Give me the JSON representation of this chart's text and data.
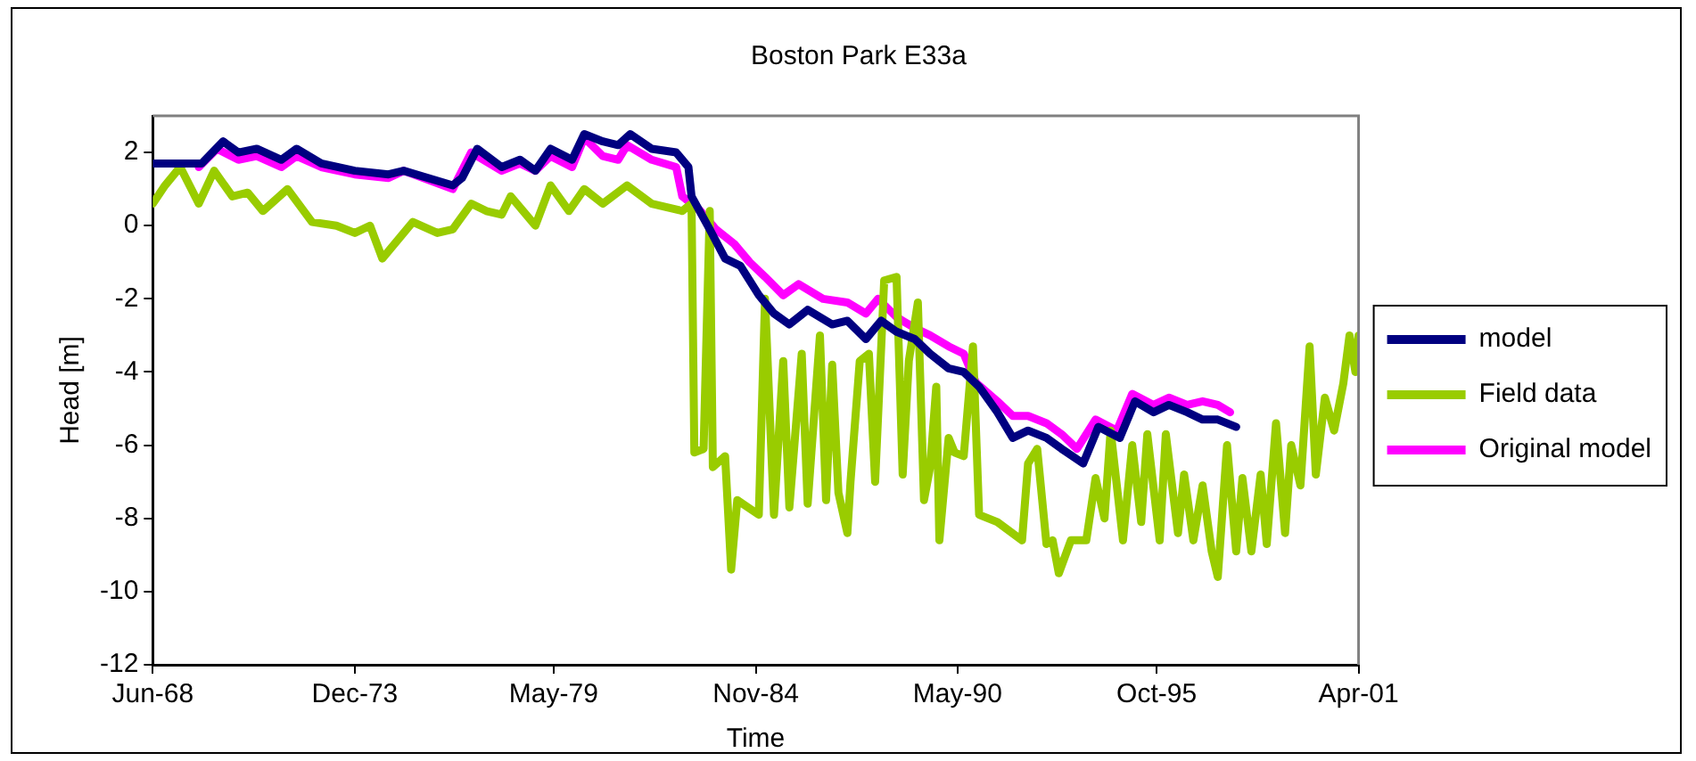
{
  "chart_data": {
    "type": "line",
    "title": "Boston Park E33a",
    "xlabel": "Time",
    "ylabel": "Head [m]",
    "xlim": [
      "1968-06",
      "2001-04"
    ],
    "xticks": [
      {
        "value": "1968-06",
        "label": "Jun-68"
      },
      {
        "value": "1973-12",
        "label": "Dec-73"
      },
      {
        "value": "1979-05",
        "label": "May-79"
      },
      {
        "value": "1984-11",
        "label": "Nov-84"
      },
      {
        "value": "1990-05",
        "label": "May-90"
      },
      {
        "value": "1995-10",
        "label": "Oct-95"
      },
      {
        "value": "2001-04",
        "label": "Apr-01"
      }
    ],
    "ylim": [
      -12,
      3
    ],
    "yticks": [
      -12,
      -10,
      -8,
      -6,
      -4,
      -2,
      0,
      2
    ],
    "grid": false,
    "legend": "right",
    "marker": "none",
    "line_style": "solid",
    "series": [
      {
        "name": "model",
        "color": "#000080",
        "x": [
          "1968-06",
          "1969-10",
          "1970-05",
          "1970-10",
          "1971-04",
          "1971-12",
          "1972-05",
          "1973-01",
          "1973-12",
          "1974-11",
          "1975-04",
          "1976-08",
          "1976-11",
          "1977-04",
          "1977-12",
          "1978-06",
          "1978-11",
          "1979-04",
          "1979-11",
          "1980-03",
          "1980-09",
          "1981-02",
          "1981-06",
          "1982-01",
          "1982-09",
          "1983-01",
          "1983-02",
          "1983-08",
          "1984-01",
          "1984-06",
          "1984-12",
          "1985-05",
          "1985-10",
          "1986-04",
          "1986-12",
          "1987-05",
          "1987-11",
          "1988-04",
          "1988-09",
          "1989-03",
          "1989-08",
          "1990-02",
          "1990-07",
          "1990-12",
          "1991-06",
          "1991-11",
          "1992-04",
          "1992-10",
          "1993-03",
          "1993-10",
          "1994-03",
          "1994-10",
          "1995-03",
          "1995-09",
          "1996-02",
          "1996-08",
          "1997-01",
          "1997-06",
          "1997-12"
        ],
        "values": [
          1.7,
          1.7,
          2.3,
          2.0,
          2.1,
          1.8,
          2.1,
          1.7,
          1.5,
          1.4,
          1.5,
          1.1,
          1.3,
          2.1,
          1.6,
          1.8,
          1.5,
          2.1,
          1.8,
          2.5,
          2.3,
          2.2,
          2.5,
          2.1,
          2.0,
          1.6,
          0.8,
          -0.1,
          -0.9,
          -1.1,
          -1.9,
          -2.4,
          -2.7,
          -2.3,
          -2.7,
          -2.6,
          -3.1,
          -2.6,
          -2.9,
          -3.1,
          -3.5,
          -3.9,
          -4.0,
          -4.4,
          -5.1,
          -5.8,
          -5.6,
          -5.8,
          -6.1,
          -6.5,
          -5.5,
          -5.8,
          -4.8,
          -5.1,
          -4.9,
          -5.1,
          -5.3,
          -5.3,
          -5.5
        ]
      },
      {
        "name": "Field data",
        "color": "#99cc00",
        "x": [
          "1968-06",
          "1968-10",
          "1969-03",
          "1969-09",
          "1970-02",
          "1970-08",
          "1971-01",
          "1971-06",
          "1972-02",
          "1972-10",
          "1973-06",
          "1973-12",
          "1974-05",
          "1974-09",
          "1975-07",
          "1976-03",
          "1976-08",
          "1977-02",
          "1977-07",
          "1977-12",
          "1978-03",
          "1978-11",
          "1979-04",
          "1979-10",
          "1980-03",
          "1980-09",
          "1981-05",
          "1982-01",
          "1982-11",
          "1983-02",
          "1983-03",
          "1983-06",
          "1983-08",
          "1983-09",
          "1984-01",
          "1984-03",
          "1984-05",
          "1984-12",
          "1985-02",
          "1985-05",
          "1985-08",
          "1985-10",
          "1986-02",
          "1986-04",
          "1986-08",
          "1986-10",
          "1986-12",
          "1987-02",
          "1987-05",
          "1987-06",
          "1987-09",
          "1987-12",
          "1988-02",
          "1988-05",
          "1988-09",
          "1988-11",
          "1989-01",
          "1989-04",
          "1989-06",
          "1989-08",
          "1989-10",
          "1989-11",
          "1990-02",
          "1990-04",
          "1990-07",
          "1990-10",
          "1990-12",
          "1991-06",
          "1992-02",
          "1992-04",
          "1992-07",
          "1992-10",
          "1992-12",
          "1993-02",
          "1993-06",
          "1993-11",
          "1994-02",
          "1994-05",
          "1994-07",
          "1994-11",
          "1995-02",
          "1995-05",
          "1995-07",
          "1995-11",
          "1996-01",
          "1996-05",
          "1996-07",
          "1996-10",
          "1997-01",
          "1997-04",
          "1997-06",
          "1997-09",
          "1997-12",
          "1998-02",
          "1998-05",
          "1998-08",
          "1998-10",
          "1999-01",
          "1999-04",
          "1999-06",
          "1999-09",
          "1999-12",
          "2000-02",
          "2000-05",
          "2000-08",
          "2000-11",
          "2001-01",
          "2001-03",
          "2001-04"
        ],
        "values": [
          0.6,
          1.1,
          1.6,
          0.6,
          1.5,
          0.8,
          0.9,
          0.4,
          1.0,
          0.1,
          0.0,
          -0.2,
          0.0,
          -0.9,
          0.1,
          -0.2,
          -0.1,
          0.6,
          0.4,
          0.3,
          0.8,
          0.0,
          1.1,
          0.4,
          1.0,
          0.6,
          1.1,
          0.6,
          0.4,
          0.6,
          -6.2,
          -6.1,
          0.4,
          -6.6,
          -6.3,
          -9.4,
          -7.5,
          -7.9,
          -2.0,
          -7.9,
          -3.7,
          -7.7,
          -3.5,
          -7.6,
          -3.0,
          -7.5,
          -3.8,
          -7.3,
          -8.4,
          -7.0,
          -3.7,
          -3.5,
          -7.0,
          -1.5,
          -1.4,
          -6.8,
          -3.7,
          -2.1,
          -7.5,
          -6.6,
          -4.4,
          -8.6,
          -5.8,
          -6.2,
          -6.3,
          -3.3,
          -7.9,
          -8.1,
          -8.6,
          -6.5,
          -6.1,
          -8.7,
          -8.6,
          -9.5,
          -8.6,
          -8.6,
          -6.9,
          -8.0,
          -5.6,
          -8.6,
          -6.0,
          -8.1,
          -5.7,
          -8.6,
          -5.7,
          -8.4,
          -6.8,
          -8.6,
          -7.1,
          -8.9,
          -9.6,
          -6.0,
          -8.9,
          -6.9,
          -8.9,
          -6.8,
          -8.7,
          -5.4,
          -8.4,
          -6.0,
          -7.1,
          -3.3,
          -6.8,
          -4.7,
          -5.6,
          -4.3,
          -3.0,
          -4.0,
          -3.0
        ]
      },
      {
        "name": "Original model",
        "color": "#ff00ff",
        "x": [
          "1969-09",
          "1970-03",
          "1970-10",
          "1971-04",
          "1971-12",
          "1972-05",
          "1973-01",
          "1973-12",
          "1974-11",
          "1975-04",
          "1976-08",
          "1977-02",
          "1977-12",
          "1978-06",
          "1978-11",
          "1979-04",
          "1979-11",
          "1980-03",
          "1980-09",
          "1981-02",
          "1981-05",
          "1982-01",
          "1982-09",
          "1982-11",
          "1983-05",
          "1983-10",
          "1984-04",
          "1984-09",
          "1985-02",
          "1985-08",
          "1986-01",
          "1986-09",
          "1987-05",
          "1987-11",
          "1988-03",
          "1988-09",
          "1989-03",
          "1989-08",
          "1990-02",
          "1990-07",
          "1990-11",
          "1991-06",
          "1991-11",
          "1992-04",
          "1992-10",
          "1993-03",
          "1993-08",
          "1994-02",
          "1994-09",
          "1995-02",
          "1995-09",
          "1996-02",
          "1996-08",
          "1997-01",
          "1997-06",
          "1997-10"
        ],
        "values": [
          1.6,
          2.1,
          1.8,
          1.9,
          1.6,
          1.9,
          1.6,
          1.4,
          1.3,
          1.5,
          1.0,
          2.0,
          1.5,
          1.7,
          1.5,
          1.9,
          1.6,
          2.4,
          1.9,
          1.8,
          2.2,
          1.8,
          1.6,
          0.8,
          0.4,
          -0.1,
          -0.5,
          -1.0,
          -1.4,
          -1.9,
          -1.6,
          -2.0,
          -2.1,
          -2.4,
          -2.0,
          -2.5,
          -2.8,
          -3.0,
          -3.3,
          -3.5,
          -4.3,
          -4.8,
          -5.2,
          -5.2,
          -5.4,
          -5.7,
          -6.1,
          -5.3,
          -5.6,
          -4.6,
          -4.9,
          -4.7,
          -4.9,
          -4.8,
          -4.9,
          -5.1
        ]
      }
    ]
  }
}
